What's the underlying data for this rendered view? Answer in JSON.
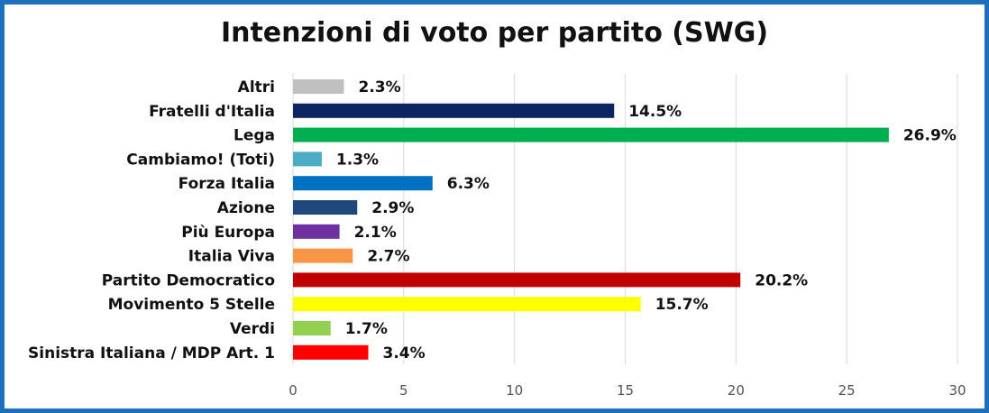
{
  "chart_data": {
    "type": "bar",
    "orientation": "horizontal",
    "title": "Intenzioni di voto per partito (SWG)",
    "xlabel": "",
    "ylabel": "",
    "xlim": [
      0,
      30
    ],
    "xticks": [
      "0",
      "5",
      "10",
      "15",
      "20",
      "25",
      "30"
    ],
    "grid": true,
    "categories": [
      "Altri",
      "Fratelli d'Italia",
      "Lega",
      "Cambiamo! (Toti)",
      "Forza Italia",
      "Azione",
      "Più Europa",
      "Italia Viva",
      "Partito Democratico",
      "Movimento 5 Stelle",
      "Verdi",
      "Sinistra Italiana / MDP Art. 1"
    ],
    "values": [
      2.3,
      14.5,
      26.9,
      1.3,
      6.3,
      2.9,
      2.1,
      2.7,
      20.2,
      15.7,
      1.7,
      3.4
    ],
    "value_labels": [
      "2.3%",
      "14.5%",
      "26.9%",
      "1.3%",
      "6.3%",
      "2.9%",
      "2.1%",
      "2.7%",
      "20.2%",
      "15.7%",
      "1.7%",
      "3.4%"
    ],
    "colors": [
      "#c0c0c0",
      "#0c2461",
      "#00b050",
      "#4bacc6",
      "#0070c0",
      "#1f497d",
      "#7030a0",
      "#f79646",
      "#c00000",
      "#ffff00",
      "#92d050",
      "#ff0000"
    ]
  }
}
